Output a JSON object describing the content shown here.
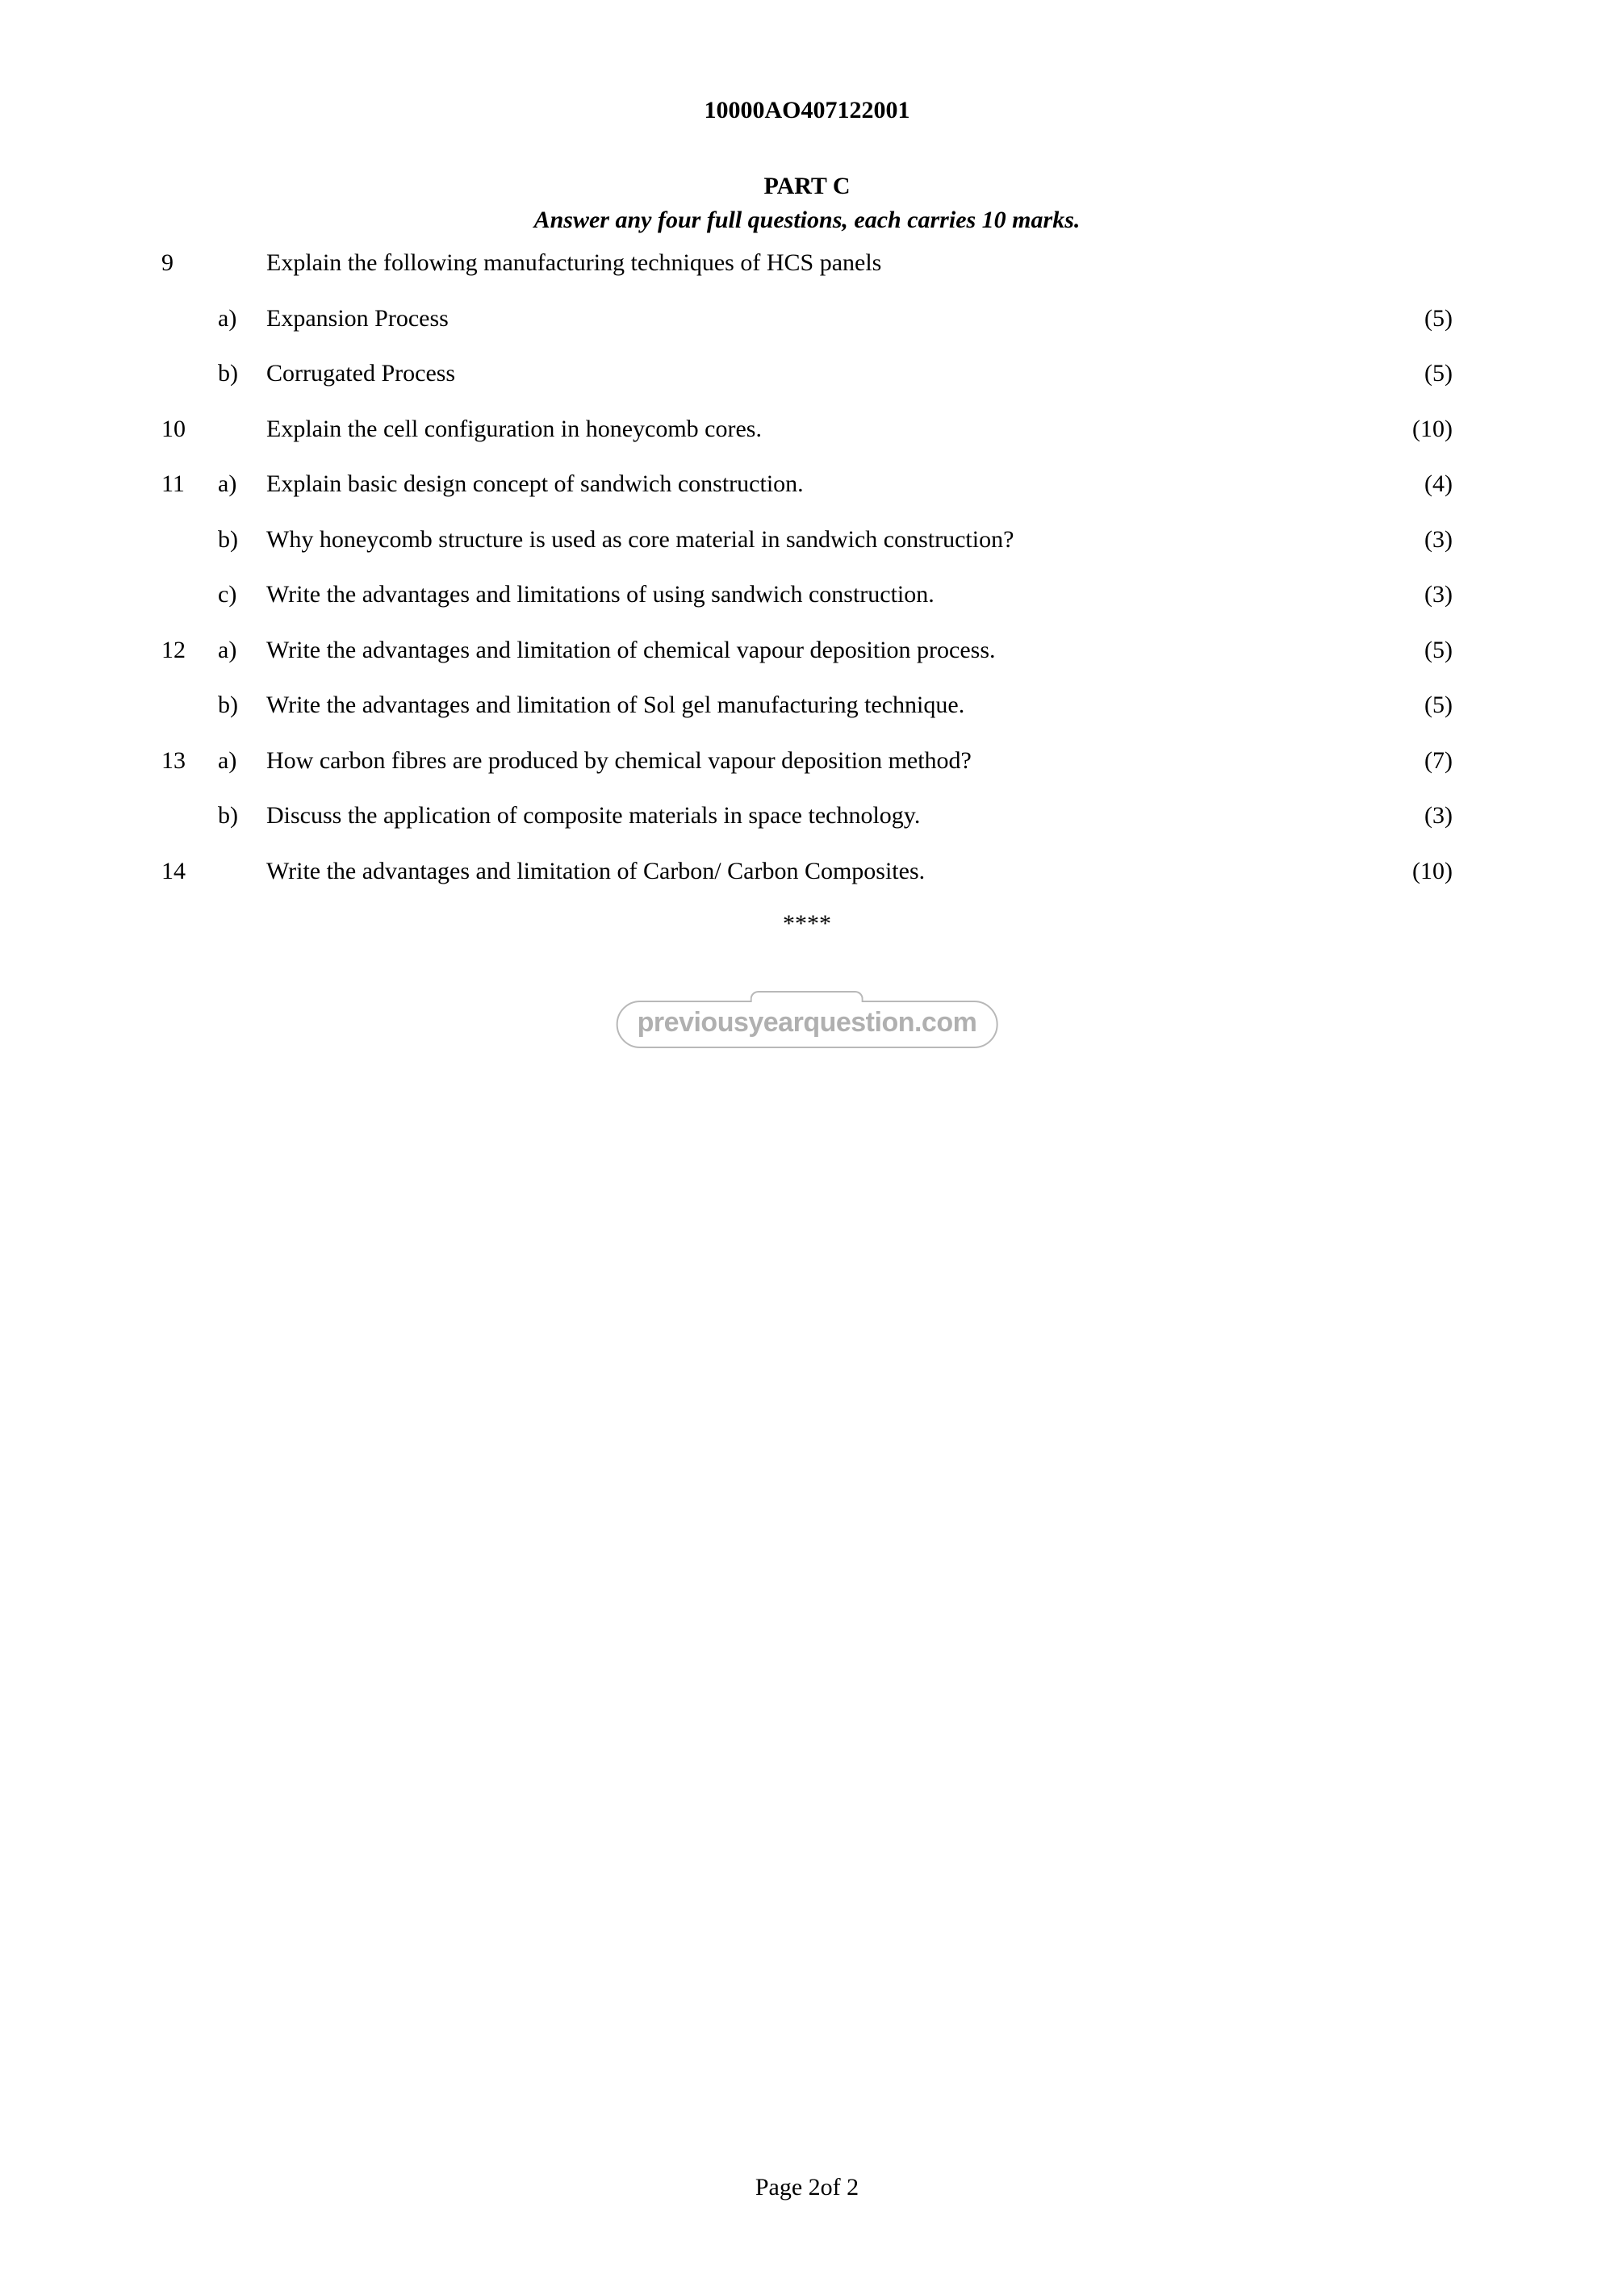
{
  "header": {
    "doc_code": "10000AO407122001",
    "part_title": "PART C",
    "instruction": "Answer any four full questions, each carries 10 marks."
  },
  "questions": [
    {
      "num": "9",
      "sub": "",
      "text": "Explain the following manufacturing techniques of HCS panels",
      "marks": ""
    },
    {
      "num": "",
      "sub": "a)",
      "text": "Expansion Process",
      "marks": "(5)"
    },
    {
      "num": "",
      "sub": "b)",
      "text": "Corrugated Process",
      "marks": "(5)"
    },
    {
      "num": "10",
      "sub": "",
      "text": "Explain the cell configuration in honeycomb cores.",
      "marks": "(10)"
    },
    {
      "num": "11",
      "sub": "a)",
      "text": "Explain basic design concept of sandwich construction.",
      "marks": "(4)"
    },
    {
      "num": "",
      "sub": "b)",
      "text": "Why honeycomb structure is used as core material in sandwich construction?",
      "marks": "(3)"
    },
    {
      "num": "",
      "sub": "c)",
      "text": "Write the advantages and limitations of using sandwich construction.",
      "marks": "(3)"
    },
    {
      "num": "12",
      "sub": "a)",
      "text": "Write the advantages and limitation of chemical vapour deposition process.",
      "marks": "(5)"
    },
    {
      "num": "",
      "sub": "b)",
      "text": "Write the advantages and limitation of Sol gel manufacturing technique.",
      "marks": "(5)"
    },
    {
      "num": "13",
      "sub": "a)",
      "text": "How carbon fibres are produced by chemical vapour deposition method?",
      "marks": "(7)"
    },
    {
      "num": "",
      "sub": "b)",
      "text": "Discuss the application of composite materials in space technology.",
      "marks": "(3)"
    },
    {
      "num": "14",
      "sub": "",
      "text": "Write the advantages and limitation of Carbon/ Carbon Composites.",
      "marks": "(10)"
    }
  ],
  "end_marker": "****",
  "watermark": "previousyearquestion.com",
  "footer": "Page 2of 2"
}
